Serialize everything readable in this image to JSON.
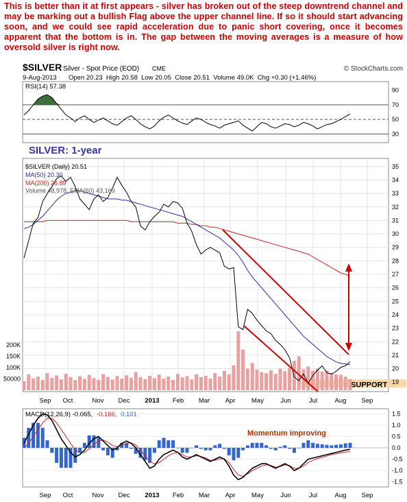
{
  "commentary": "This is better than it at first appears - silver has broken out of the steep downtrend channel and may be marking out a bullish Flag above the upper channel line. If so it should start advancing soon, and we could see rapid acceleration due to panic short covering, once it becomes apparent that the bottom is in. The gap between the moving averages is a measure of how oversold silver is right now.",
  "header": {
    "symbol": "$SILVER",
    "name": "Silver - Spot Price (EOD)",
    "exchange": "CME",
    "credit": "© StockCharts.com",
    "date": "9-Aug-2013",
    "quote": "Open 20.23  High 20.58  Low 20.05  Close 20.51  Volume 49.0K  Chg +0.30 (+1.46%)"
  },
  "colors": {
    "price": "#000000",
    "ma50": "#2a2aa8",
    "ma200": "#cc2222",
    "channel": "#cc0000",
    "arrow": "#cc0000",
    "rsi_fill_up": "#3c6e3c",
    "rsi_fill_down": "#8a5050",
    "macd_hist": "#3366cc",
    "volume": "#e8a0a0",
    "support_band": "#f8d7a8",
    "annotation_title": "#3333aa",
    "annotation_momentum": "#aa3300"
  },
  "chart_data": [
    {
      "type": "line",
      "panel": "rsi",
      "legend": "RSI(14) 57.38",
      "y_ticks": [
        30,
        50,
        70,
        90
      ],
      "ylim": [
        20,
        100
      ],
      "reference_lines": [
        30,
        50,
        70
      ],
      "x_labels": [
        "Sep",
        "Oct",
        "Nov",
        "Dec",
        "2013",
        "Feb",
        "Mar",
        "Apr",
        "May",
        "Jun",
        "Jul",
        "Aug",
        "Sep"
      ],
      "series": [
        {
          "values": [
            56,
            62,
            70,
            78,
            82,
            84,
            80,
            72,
            64,
            56,
            52,
            47,
            52,
            55,
            50,
            46,
            49,
            52,
            48,
            44,
            42,
            47,
            52,
            55,
            50,
            44,
            40,
            37,
            41,
            48,
            53,
            56,
            52,
            48,
            45,
            43,
            48,
            52,
            50,
            46,
            43,
            41,
            38,
            42,
            44,
            46,
            48,
            42,
            38,
            34,
            40,
            46,
            44,
            40,
            38,
            41,
            44,
            43,
            40,
            42,
            46,
            44,
            41,
            37,
            40,
            43,
            44,
            47,
            50,
            54,
            57.38
          ]
        }
      ]
    },
    {
      "type": "line",
      "panel": "price",
      "title": "SILVER: 1-year",
      "legend": [
        "$SILVER (Daily) 20.51",
        "MA(50) 20.30",
        "MA(200) 26.89",
        "Volume 48,978, EMA(60) 43,169"
      ],
      "y_ticks": [
        19,
        20,
        21,
        22,
        23,
        24,
        25,
        26,
        27,
        28,
        29,
        30,
        31,
        32,
        33,
        34,
        35
      ],
      "ylim": [
        18.4,
        35.5
      ],
      "volume_ticks": [
        "200K",
        "150K",
        "100K",
        "50000"
      ],
      "volume_tick_values": [
        200000,
        150000,
        100000,
        50000
      ],
      "volume_max": 300000,
      "support_label": "SUPPORT",
      "support_range": [
        18.6,
        19.2
      ],
      "series": [
        {
          "name": "$SILVER (Daily)",
          "values": [
            28.2,
            29.5,
            30.8,
            31.2,
            32.4,
            33.0,
            33.5,
            34.1,
            34.3,
            33.9,
            34.2,
            33.5,
            32.6,
            32.2,
            31.8,
            32.6,
            32.9,
            32.4,
            32.7,
            33.4,
            34.2,
            33.6,
            33.1,
            32.4,
            32.0,
            30.6,
            30.3,
            30.9,
            31.3,
            31.6,
            32.2,
            32.0,
            32.4,
            32.3,
            31.9,
            30.8,
            30.2,
            29.2,
            28.5,
            28.8,
            29.0,
            28.8,
            28.6,
            27.6,
            27.4,
            27.5,
            23.1,
            22.9,
            24.4,
            24.1,
            23.6,
            23.2,
            22.8,
            22.6,
            22.1,
            21.8,
            21.4,
            20.8,
            19.4,
            19.1,
            19.6,
            18.9,
            19.5,
            19.9,
            20.2,
            19.7,
            19.6,
            19.8,
            20.1,
            20.21,
            20.51
          ]
        },
        {
          "name": "MA(50)",
          "values": [
            30.4,
            30.5,
            30.7,
            31.0,
            31.3,
            31.7,
            32.1,
            32.5,
            32.8,
            33.0,
            33.1,
            33.2,
            33.2,
            33.1,
            33.0,
            32.9,
            32.8,
            32.7,
            32.6,
            32.6,
            32.6,
            32.5,
            32.5,
            32.4,
            32.3,
            32.2,
            32.1,
            32.0,
            31.9,
            31.8,
            31.7,
            31.6,
            31.5,
            31.4,
            31.3,
            31.1,
            30.9,
            30.7,
            30.5,
            30.3,
            30.1,
            29.9,
            29.7,
            29.4,
            29.1,
            28.8,
            28.4,
            27.9,
            27.3,
            26.8,
            26.4,
            26.0,
            25.6,
            25.2,
            24.8,
            24.4,
            24.0,
            23.6,
            23.2,
            22.8,
            22.4,
            22.1,
            21.8,
            21.5,
            21.2,
            20.9,
            20.7,
            20.5,
            20.4,
            20.35,
            20.3
          ]
        },
        {
          "name": "MA(200)",
          "values": [
            30.9,
            30.9,
            30.9,
            30.9,
            30.9,
            31.0,
            31.0,
            31.0,
            31.0,
            31.0,
            31.0,
            31.0,
            31.0,
            31.0,
            31.0,
            31.0,
            31.0,
            31.0,
            31.0,
            31.0,
            31.0,
            31.0,
            31.0,
            30.9,
            30.9,
            30.9,
            30.9,
            30.9,
            30.9,
            30.9,
            30.9,
            30.9,
            30.9,
            30.8,
            30.8,
            30.8,
            30.7,
            30.7,
            30.6,
            30.6,
            30.5,
            30.5,
            30.4,
            30.3,
            30.2,
            30.1,
            30.0,
            29.9,
            29.8,
            29.7,
            29.6,
            29.5,
            29.4,
            29.3,
            29.2,
            29.1,
            29.0,
            28.9,
            28.8,
            28.7,
            28.6,
            28.5,
            28.3,
            28.1,
            27.9,
            27.7,
            27.5,
            27.3,
            27.1,
            27.0,
            26.89
          ]
        }
      ],
      "volume": [
        40000,
        70000,
        52000,
        60000,
        45000,
        75000,
        55000,
        65000,
        48000,
        72000,
        58000,
        45000,
        62000,
        50000,
        68000,
        54000,
        46000,
        71000,
        59000,
        47000,
        63000,
        52000,
        66000,
        55000,
        80000,
        58000,
        49000,
        64000,
        53000,
        69000,
        51000,
        60000,
        45000,
        72000,
        56000,
        62000,
        48000,
        70000,
        58000,
        64000,
        52000,
        76000,
        60000,
        85000,
        70000,
        110000,
        260000,
        180000,
        95000,
        120000,
        90000,
        80000,
        75000,
        88000,
        72000,
        95000,
        84000,
        100000,
        130000,
        150000,
        92000,
        105000,
        86000,
        95000,
        82000,
        88000,
        76000,
        70000,
        68000,
        60000,
        49000
      ]
    },
    {
      "type": "line",
      "panel": "macd",
      "legend": [
        "MACD(12,26,9) -0.065,",
        "-0.166,",
        "0.101"
      ],
      "annotation": "Momentum improving",
      "y_ticks": [
        -1.5,
        -1.0,
        -0.5,
        0.0,
        0.5,
        1.0,
        1.5
      ],
      "ylim": [
        -1.6,
        1.6
      ],
      "x_labels": [
        "Sep",
        "Oct",
        "Nov",
        "Dec",
        "2013",
        "Feb",
        "Mar",
        "Apr",
        "May",
        "Jun",
        "Jul",
        "Aug",
        "Sep"
      ],
      "series": [
        {
          "name": "MACD",
          "values": [
            0.2,
            0.6,
            1.0,
            1.3,
            1.5,
            1.45,
            1.2,
            0.8,
            0.4,
            0.1,
            -0.2,
            -0.4,
            -0.3,
            -0.1,
            0.2,
            0.4,
            0.5,
            0.3,
            0.1,
            -0.1,
            0.0,
            0.2,
            0.3,
            0.2,
            0.0,
            -0.3,
            -0.6,
            -0.9,
            -0.8,
            -0.5,
            -0.3,
            -0.2,
            -0.1,
            -0.2,
            -0.4,
            -0.5,
            -0.4,
            -0.3,
            -0.4,
            -0.5,
            -0.6,
            -0.5,
            -0.4,
            -0.5,
            -0.8,
            -1.2,
            -1.4,
            -1.3,
            -1.1,
            -0.9,
            -0.8,
            -0.7,
            -0.7,
            -0.8,
            -0.9,
            -0.8,
            -0.7,
            -0.8,
            -1.0,
            -0.9,
            -0.7,
            -0.5,
            -0.45,
            -0.4,
            -0.35,
            -0.3,
            -0.25,
            -0.2,
            -0.15,
            -0.1,
            -0.065
          ]
        },
        {
          "name": "Signal",
          "values": [
            0.0,
            0.2,
            0.5,
            0.8,
            1.1,
            1.3,
            1.3,
            1.1,
            0.8,
            0.5,
            0.2,
            -0.1,
            -0.2,
            -0.2,
            -0.05,
            0.15,
            0.3,
            0.35,
            0.25,
            0.1,
            0.05,
            0.1,
            0.2,
            0.22,
            0.12,
            -0.1,
            -0.35,
            -0.6,
            -0.7,
            -0.65,
            -0.5,
            -0.35,
            -0.25,
            -0.2,
            -0.3,
            -0.4,
            -0.4,
            -0.35,
            -0.38,
            -0.45,
            -0.55,
            -0.55,
            -0.48,
            -0.48,
            -0.65,
            -0.95,
            -1.2,
            -1.25,
            -1.15,
            -1.0,
            -0.9,
            -0.8,
            -0.75,
            -0.78,
            -0.85,
            -0.82,
            -0.75,
            -0.78,
            -0.9,
            -0.9,
            -0.8,
            -0.65,
            -0.55,
            -0.48,
            -0.42,
            -0.36,
            -0.3,
            -0.26,
            -0.22,
            -0.19,
            -0.166
          ]
        }
      ]
    }
  ]
}
